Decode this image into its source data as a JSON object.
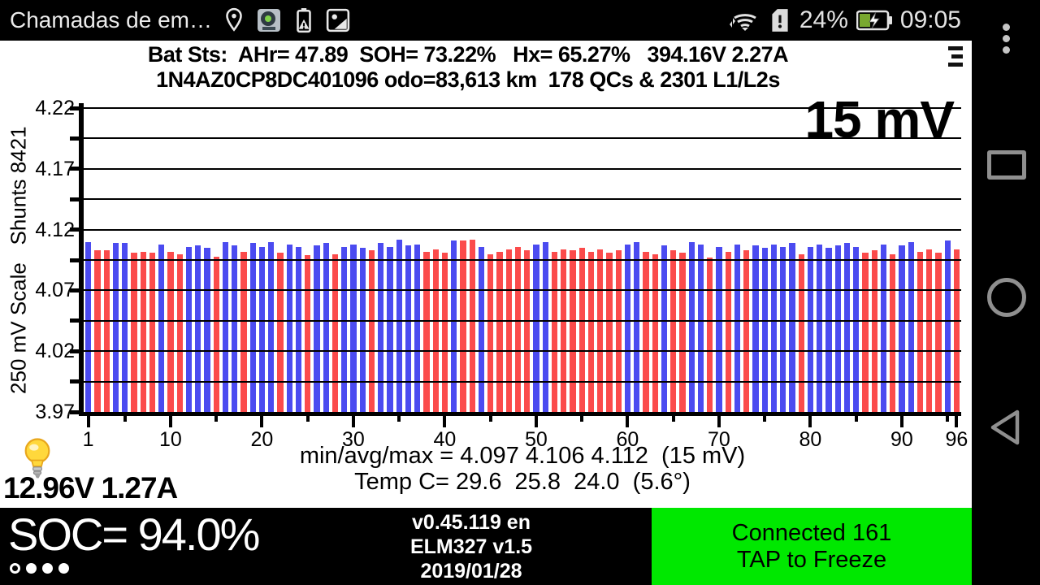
{
  "status_bar": {
    "notification_text": "Chamadas de em…",
    "icons_left": [
      "location-pin-icon",
      "app-thumbnail-icon",
      "battery-alert-icon",
      "screenshot-icon"
    ],
    "icons_right": [
      "wifi-icon",
      "sim-alert-icon",
      "battery-charging-icon"
    ],
    "battery_percent": "24%",
    "time": "09:05",
    "battery_fill_color": "#79a82f"
  },
  "nav_bar": {
    "icons": [
      "overflow-menu-icon",
      "recents-icon",
      "home-icon",
      "back-icon"
    ]
  },
  "header": {
    "line1": "Bat Sts:  AHr= 47.89  SOH= 73.22%   Hx= 65.27%   394.16V 2.27A",
    "line2": "1N4AZ0CP8DC401096 odo=83,613 km  178 QCs & 2301 L1/L2s",
    "menu_icon": "hamburger-menu-icon"
  },
  "chart_data": {
    "type": "bar",
    "annotation": "15 mV",
    "ylabel": "250 mV Scale   Shunts 8421",
    "ylim": [
      3.97,
      4.22
    ],
    "grid_step": 0.025,
    "ytick_labels": [
      "4.22",
      "4.17",
      "4.12",
      "4.07",
      "4.02",
      "3.97"
    ],
    "ytick_values": [
      4.22,
      4.17,
      4.12,
      4.07,
      4.02,
      3.97
    ],
    "xtick_labels": [
      "1",
      "10",
      "20",
      "30",
      "40",
      "50",
      "60",
      "70",
      "80",
      "90",
      "96"
    ],
    "xtick_positions": [
      1,
      10,
      20,
      30,
      40,
      50,
      60,
      70,
      80,
      90,
      96
    ],
    "x_minor_tick_every": 5,
    "cells": 96,
    "bar_colors": {
      "b": "#4b4bf0",
      "r": "#fb4b4b"
    },
    "values": [
      4.11,
      4.103,
      4.103,
      4.109,
      4.109,
      4.101,
      4.102,
      4.101,
      4.108,
      4.102,
      4.1,
      4.106,
      4.107,
      4.105,
      4.098,
      4.11,
      4.107,
      4.102,
      4.109,
      4.106,
      4.11,
      4.101,
      4.108,
      4.106,
      4.099,
      4.107,
      4.109,
      4.1,
      4.106,
      4.108,
      4.105,
      4.103,
      4.109,
      4.106,
      4.112,
      4.107,
      4.108,
      4.102,
      4.104,
      4.101,
      4.111,
      4.111,
      4.112,
      4.106,
      4.1,
      4.102,
      4.104,
      4.106,
      4.103,
      4.108,
      4.11,
      4.102,
      4.104,
      4.103,
      4.105,
      4.102,
      4.104,
      4.101,
      4.103,
      4.108,
      4.11,
      4.102,
      4.1,
      4.107,
      4.103,
      4.101,
      4.11,
      4.108,
      4.097,
      4.106,
      4.102,
      4.108,
      4.103,
      4.107,
      4.105,
      4.108,
      4.106,
      4.109,
      4.1,
      4.106,
      4.108,
      4.105,
      4.107,
      4.109,
      4.106,
      4.101,
      4.103,
      4.108,
      4.1,
      4.107,
      4.11,
      4.102,
      4.104,
      4.101,
      4.111,
      4.104
    ],
    "colors": [
      "b",
      "r",
      "r",
      "b",
      "b",
      "r",
      "r",
      "r",
      "b",
      "r",
      "r",
      "b",
      "b",
      "b",
      "r",
      "b",
      "b",
      "r",
      "b",
      "b",
      "b",
      "r",
      "b",
      "b",
      "r",
      "b",
      "b",
      "r",
      "b",
      "b",
      "b",
      "r",
      "b",
      "b",
      "b",
      "b",
      "b",
      "r",
      "r",
      "r",
      "b",
      "r",
      "r",
      "b",
      "r",
      "r",
      "r",
      "r",
      "r",
      "b",
      "b",
      "r",
      "r",
      "r",
      "r",
      "r",
      "r",
      "r",
      "r",
      "b",
      "b",
      "r",
      "r",
      "b",
      "r",
      "r",
      "b",
      "b",
      "r",
      "b",
      "r",
      "b",
      "r",
      "b",
      "b",
      "b",
      "b",
      "b",
      "r",
      "b",
      "b",
      "b",
      "b",
      "b",
      "b",
      "r",
      "r",
      "b",
      "r",
      "b",
      "b",
      "r",
      "r",
      "r",
      "b",
      "r"
    ],
    "stats_line": "min/avg/max = 4.097 4.106 4.112  (15 mV)",
    "temp_line": "Temp C= 29.6  25.8  24.0  (5.6°)"
  },
  "aux": {
    "bulb_icon": "lightbulb-icon",
    "voltage_line": "12.96V 1.27A"
  },
  "bottom_bar": {
    "soc": "SOC= 94.0%",
    "pager": {
      "count": 4,
      "active_index": 0
    },
    "version": "v0.45.119 en",
    "adapter": "ELM327 v1.5",
    "date": "2019/01/28",
    "connection": {
      "line1": "Connected 161",
      "line2": "TAP to Freeze",
      "bg": "#00e800"
    }
  }
}
